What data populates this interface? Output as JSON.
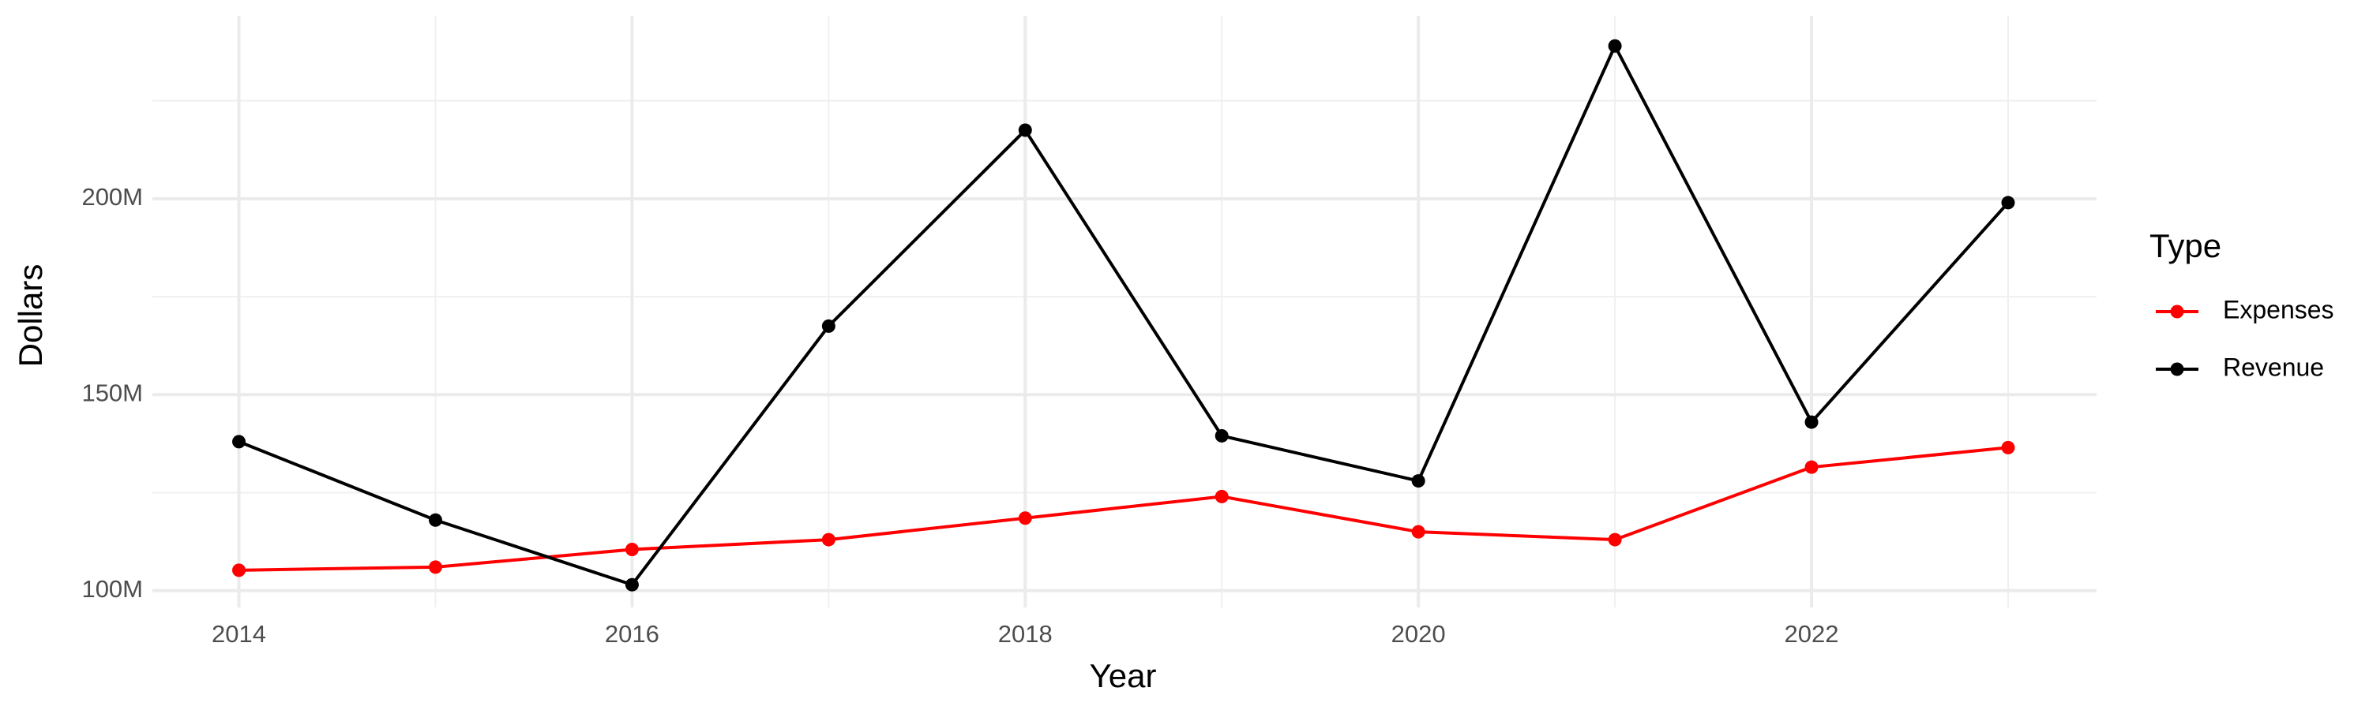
{
  "chart_data": {
    "type": "line",
    "x_label": "Year",
    "y_label": "Dollars",
    "legend_title": "Type",
    "x": [
      2014,
      2015,
      2016,
      2017,
      2018,
      2019,
      2020,
      2021,
      2022,
      2023
    ],
    "series": [
      {
        "name": "Expenses",
        "color": "#ff0000",
        "values": [
          105200000,
          106000000,
          110500000,
          113000000,
          118500000,
          124000000,
          115000000,
          113000000,
          131500000,
          136500000
        ]
      },
      {
        "name": "Revenue",
        "color": "#000000",
        "values": [
          138000000,
          118000000,
          101500000,
          167500000,
          217500000,
          139500000,
          128000000,
          239000000,
          143000000,
          199000000
        ]
      }
    ],
    "xlim": [
      2013.56,
      2023.45
    ],
    "xticks": [
      2014,
      2016,
      2018,
      2020,
      2022
    ],
    "ylim": [
      95700000,
      246700000
    ],
    "yticks": [
      {
        "value": 100000000,
        "label": "100M"
      },
      {
        "value": 150000000,
        "label": "150M"
      },
      {
        "value": 200000000,
        "label": "200M"
      }
    ],
    "grid": true,
    "legend": "right"
  }
}
